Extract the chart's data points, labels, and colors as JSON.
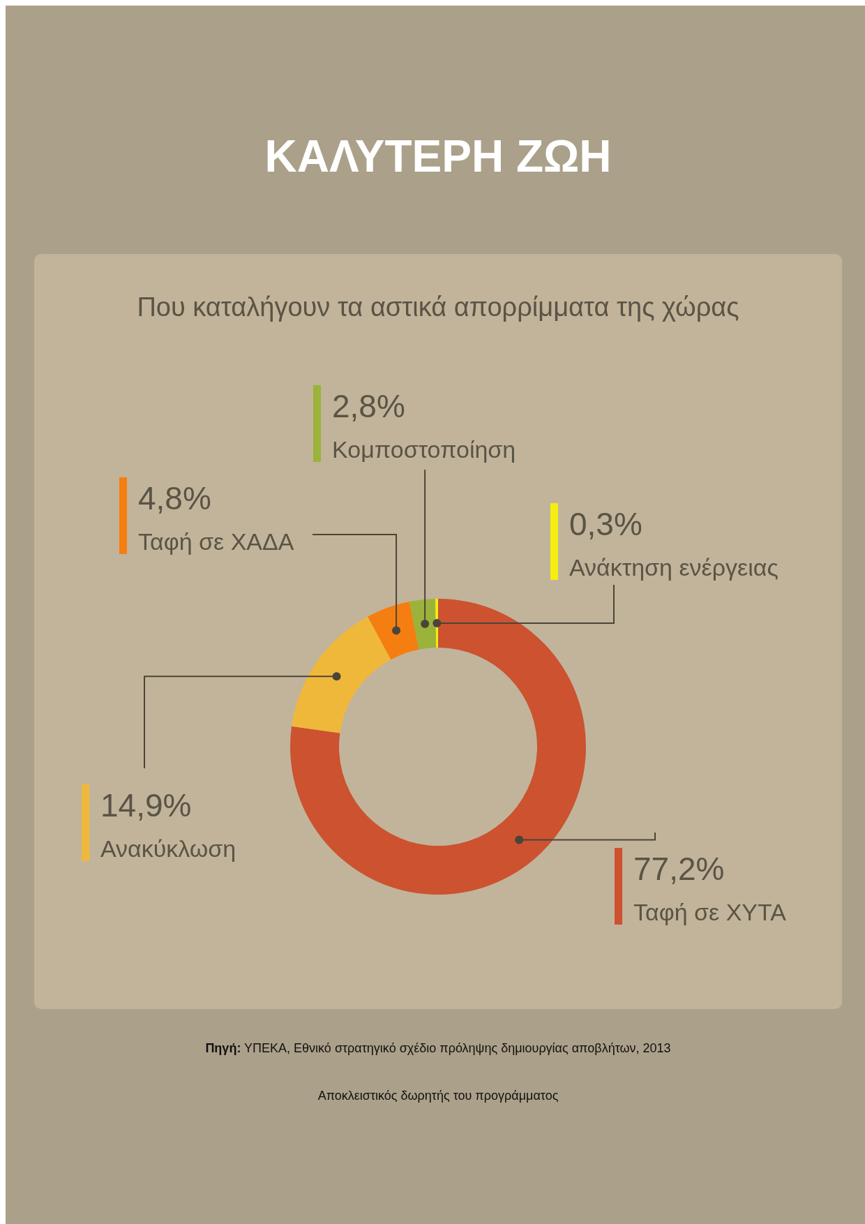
{
  "chart_data": {
    "type": "donut",
    "title": "ΚΑΛΥΤΕΡΗ ΖΩΗ",
    "subtitle": "Που καταλήγουν τα αστικά απορρίμματα της χώρας",
    "categories": [
      "Ταφή σε ΧΥΤΑ",
      "Ανακύκλωση",
      "Ταφή σε ΧΑΔΑ",
      "Κομποστοποίηση",
      "Ανάκτηση ενέργειας"
    ],
    "values": [
      77.2,
      14.9,
      4.8,
      2.8,
      0.3
    ],
    "value_labels": [
      "77,2%",
      "14,9%",
      "4,8%",
      "2,8%",
      "0,3%"
    ],
    "colors": [
      "#cc5230",
      "#f0b83a",
      "#f57e10",
      "#9bb33a",
      "#f5ee10"
    ],
    "annotations": [
      "Πηγή: ΥΠΕΚΑ, Εθνικό στρατηγικό σχέδιο πρόληψης δημιουργίας αποβλήτων, 2013",
      "Αποκλειστικός δωρητής του προγράμματος"
    ]
  }
}
